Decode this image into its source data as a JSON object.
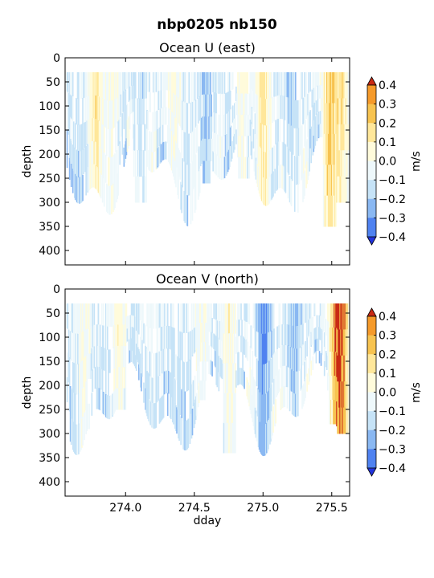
{
  "figure_title": "nbp0205 nb150",
  "colorbar_ticks": [
    "0.4",
    "0.3",
    "0.2",
    "0.1",
    "0.0",
    "−0.1",
    "−0.2",
    "−0.3",
    "−0.4"
  ],
  "colorbar_label": "m/s",
  "colors": {
    "levels": [
      "#2b50f0",
      "#4f82f0",
      "#8ab8f2",
      "#c6e3f7",
      "#eef8fb",
      "#fffbdb",
      "#ffe79a",
      "#f7c350",
      "#f59a2a",
      "#e05c18"
    ],
    "below": "#2233dd",
    "above": "#c92a14"
  },
  "chart_data": [
    {
      "type": "heatmap",
      "title": "Ocean U (east)",
      "xlabel": "",
      "ylabel": "depth",
      "xlim": [
        273.56,
        275.63
      ],
      "ylim": [
        430,
        0
      ],
      "yticks": [
        "0",
        "50",
        "100",
        "150",
        "200",
        "250",
        "300",
        "350",
        "400"
      ],
      "xticks": [],
      "colorbar": {
        "label": "m/s",
        "levels": [
          -0.4,
          -0.3,
          -0.2,
          -0.1,
          0.0,
          0.1,
          0.2,
          0.3,
          0.4
        ]
      },
      "data_depth_range": [
        30,
        375
      ],
      "features": [
        {
          "dday": 273.78,
          "depth": [
            30,
            165
          ],
          "velocity": 0.25
        },
        {
          "dday": 273.9,
          "depth": [
            30,
            280
          ],
          "velocity": 0.12
        },
        {
          "dday": 274.1,
          "depth": [
            30,
            300
          ],
          "velocity": -0.05
        },
        {
          "dday": 274.35,
          "depth": [
            40,
            200
          ],
          "velocity": 0.15
        },
        {
          "dday": 274.58,
          "depth": [
            30,
            260
          ],
          "velocity": -0.12
        },
        {
          "dday": 274.85,
          "depth": [
            40,
            250
          ],
          "velocity": 0.12
        },
        {
          "dday": 275.0,
          "depth": [
            30,
            190
          ],
          "velocity": 0.25
        },
        {
          "dday": 275.2,
          "depth": [
            30,
            210
          ],
          "velocity": -0.08
        },
        {
          "dday": 275.48,
          "depth": [
            30,
            350
          ],
          "velocity": 0.32
        },
        {
          "dday": 275.57,
          "depth": [
            30,
            300
          ],
          "velocity": 0.25
        }
      ]
    },
    {
      "type": "heatmap",
      "title": "Ocean V (north)",
      "xlabel": "dday",
      "ylabel": "depth",
      "xlim": [
        273.56,
        275.63
      ],
      "ylim": [
        430,
        0
      ],
      "yticks": [
        "0",
        "50",
        "100",
        "150",
        "200",
        "250",
        "300",
        "350",
        "400"
      ],
      "xticks": [
        "274.0",
        "274.5",
        "275.0",
        "275.5"
      ],
      "colorbar": {
        "label": "m/s",
        "levels": [
          -0.4,
          -0.3,
          -0.2,
          -0.1,
          0.0,
          0.1,
          0.2,
          0.3,
          0.4
        ]
      },
      "data_depth_range": [
        30,
        375
      ],
      "features": [
        {
          "dday": 273.7,
          "depth": [
            60,
            290
          ],
          "velocity": 0.12
        },
        {
          "dday": 273.95,
          "depth": [
            60,
            250
          ],
          "velocity": 0.18
        },
        {
          "dday": 274.2,
          "depth": [
            30,
            210
          ],
          "velocity": 0.05
        },
        {
          "dday": 274.55,
          "depth": [
            40,
            230
          ],
          "velocity": 0.12
        },
        {
          "dday": 274.75,
          "depth": [
            80,
            340
          ],
          "velocity": 0.15
        },
        {
          "dday": 275.0,
          "depth": [
            30,
            190
          ],
          "velocity": -0.2
        },
        {
          "dday": 275.22,
          "depth": [
            30,
            160
          ],
          "velocity": -0.15
        },
        {
          "dday": 275.52,
          "depth": [
            30,
            280
          ],
          "velocity": 0.3
        },
        {
          "dday": 275.58,
          "depth": [
            160,
            300
          ],
          "velocity": 0.35
        }
      ]
    }
  ]
}
